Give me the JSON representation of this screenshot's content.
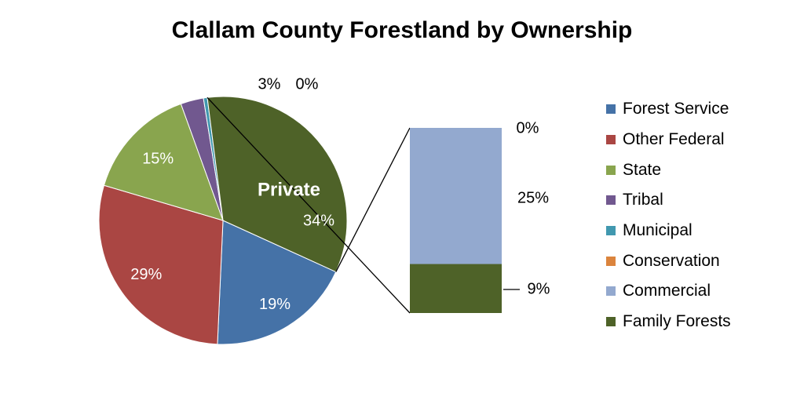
{
  "chart_data": {
    "type": "pie",
    "title": "Clallam County Forestland by Ownership",
    "subtype": "bar-of-pie",
    "slices": [
      {
        "label": "Forest Service",
        "value": 19,
        "display": "19%",
        "color": "#4572A7"
      },
      {
        "label": "Other Federal",
        "value": 29,
        "display": "29%",
        "color": "#AA4643"
      },
      {
        "label": "State",
        "value": 15,
        "display": "15%",
        "color": "#89A54E"
      },
      {
        "label": "Tribal",
        "value": 3,
        "display": "3%",
        "color": "#71588F"
      },
      {
        "label": "Municipal",
        "value": 0.5,
        "display": "0%",
        "color": "#4198AF"
      },
      {
        "label": "Private",
        "value": 34,
        "display": "34%",
        "color": "#4E6228",
        "breakout": true
      }
    ],
    "private_label": "Private",
    "bar_segments": [
      {
        "label": "Conservation",
        "value": 0,
        "display": "0%",
        "color": "#DB843D"
      },
      {
        "label": "Commercial",
        "value": 25,
        "display": "25%",
        "color": "#93A9CF"
      },
      {
        "label": "Family Forests",
        "value": 9,
        "display": "9%",
        "color": "#4E6228"
      }
    ],
    "legend": [
      {
        "label": "Forest Service",
        "color": "#4572A7"
      },
      {
        "label": "Other Federal",
        "color": "#AA4643"
      },
      {
        "label": "State",
        "color": "#89A54E"
      },
      {
        "label": "Tribal",
        "color": "#71588F"
      },
      {
        "label": "Municipal",
        "color": "#4198AF"
      },
      {
        "label": "Conservation",
        "color": "#DB843D"
      },
      {
        "label": "Commercial",
        "color": "#93A9CF"
      },
      {
        "label": "Family Forests",
        "color": "#4E6228"
      }
    ],
    "legend_position": "right"
  }
}
